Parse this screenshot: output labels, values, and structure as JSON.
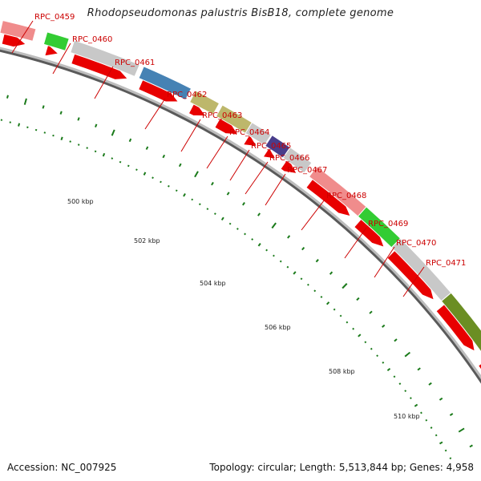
{
  "title": "Rhodopseudomonas palustris BisB18, complete genome",
  "accession": "Accession: NC_007925",
  "summary": "Topology: circular; Length: 5,513,844 bp; Genes: 4,958",
  "colors": {
    "strand": "#e80000",
    "backbone_dark": "#5a5a5a",
    "backbone_light": "#bdbdbd",
    "tick": "#1a7a1a",
    "label": "#cc0000"
  },
  "kbp_labels": [
    "500 kbp",
    "502 kbp",
    "504 kbp",
    "506 kbp",
    "508 kbp",
    "510 kbp"
  ],
  "genes": [
    {
      "label": "RPC_0459",
      "color": "#f08c8c"
    },
    {
      "label": "RPC_0460",
      "color": "#33cc33"
    },
    {
      "label": "RPC_0461",
      "color": "#c8c8c8"
    },
    {
      "label": "RPC_0462",
      "color": "#4682b4"
    },
    {
      "label": "RPC_0463",
      "color": "#bdb76b"
    },
    {
      "label": "RPC_0464",
      "color": "#bdb76b"
    },
    {
      "label": "RPC_0465",
      "color": "#c8c8c8"
    },
    {
      "label": "RPC_0466",
      "color": "#483d8b"
    },
    {
      "label": "RPC_0467",
      "color": "#c8c8c8"
    },
    {
      "label": "RPC_0468",
      "color": "#f08c8c"
    },
    {
      "label": "RPC_0469",
      "color": "#33cc33"
    },
    {
      "label": "RPC_0470",
      "color": "#c8c8c8"
    },
    {
      "label": "RPC_0471",
      "color": "#6b8e23"
    },
    {
      "label": "",
      "color": "#ff8c00"
    }
  ]
}
